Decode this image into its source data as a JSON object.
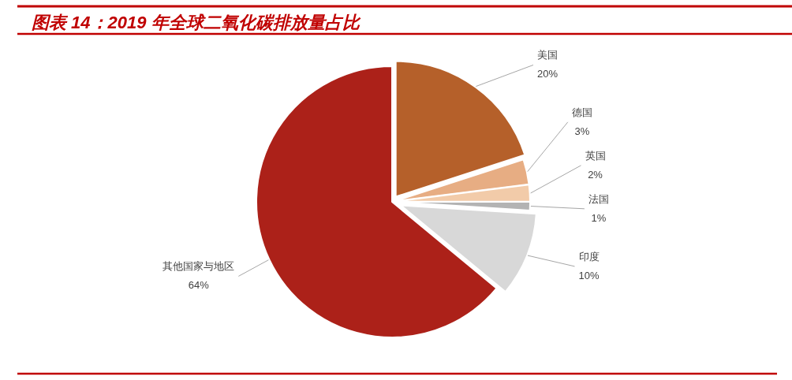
{
  "chart_data": {
    "type": "pie",
    "title": "图表 14：2019 年全球二氧化碳排放量占比",
    "categories": [
      "美国",
      "德国",
      "英国",
      "法国",
      "印度",
      "其他国家与地区"
    ],
    "values": [
      20,
      3,
      2,
      1,
      10,
      64
    ],
    "colors": [
      "#b5602a",
      "#e7ad83",
      "#f2cba9",
      "#b3b3b3",
      "#d8d8d8",
      "#ac2119"
    ],
    "value_labels": [
      "20%",
      "3%",
      "2%",
      "1%",
      "10%",
      "64%"
    ]
  }
}
